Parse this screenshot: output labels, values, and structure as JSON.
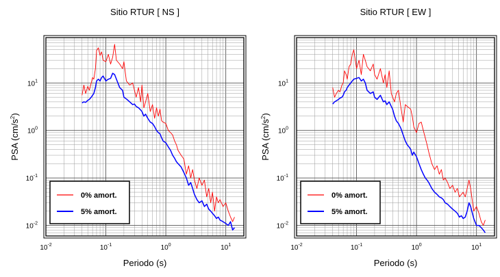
{
  "chart_data": [
    {
      "type": "line",
      "title": "Sitio RTUR [ NS ]",
      "xlabel": "Periodo (s)",
      "ylabel": "PSA (cm/s",
      "ylabel_sup": "2",
      "ylabel_close": ")",
      "x_scale": "log",
      "y_scale": "log",
      "xlim": [
        0.01,
        20
      ],
      "ylim": [
        0.006,
        90
      ],
      "x_ticks": [
        {
          "value": 0.01,
          "base": "10",
          "exp": "-2"
        },
        {
          "value": 0.1,
          "base": "10",
          "exp": "-1"
        },
        {
          "value": 1,
          "base": "10",
          "exp": "0"
        },
        {
          "value": 10,
          "base": "10",
          "exp": "1"
        }
      ],
      "y_ticks": [
        {
          "value": 0.01,
          "base": "10",
          "exp": "-2"
        },
        {
          "value": 0.1,
          "base": "10",
          "exp": "-1"
        },
        {
          "value": 1,
          "base": "10",
          "exp": "0"
        },
        {
          "value": 10,
          "base": "10",
          "exp": "1"
        }
      ],
      "grid": true,
      "legend_position": "bottom-left",
      "series": [
        {
          "name": "0% amort.",
          "color": "#ff0000",
          "x": [
            0.04,
            0.043,
            0.046,
            0.05,
            0.053,
            0.057,
            0.06,
            0.063,
            0.067,
            0.07,
            0.075,
            0.08,
            0.085,
            0.09,
            0.1,
            0.11,
            0.12,
            0.13,
            0.14,
            0.15,
            0.17,
            0.19,
            0.2,
            0.22,
            0.25,
            0.28,
            0.3,
            0.32,
            0.35,
            0.38,
            0.4,
            0.43,
            0.46,
            0.5,
            0.55,
            0.6,
            0.65,
            0.7,
            0.75,
            0.8,
            0.85,
            0.9,
            1.0,
            1.1,
            1.2,
            1.3,
            1.4,
            1.5,
            1.6,
            1.8,
            2.0,
            2.2,
            2.4,
            2.6,
            2.8,
            3.0,
            3.3,
            3.6,
            4.0,
            4.4,
            4.8,
            5.2,
            5.6,
            6.0,
            6.5,
            7.0,
            7.5,
            8.0,
            9.0,
            10.0,
            11.0,
            12.0,
            13.0,
            14.0
          ],
          "y": [
            5.5,
            9.0,
            6.0,
            8.5,
            7.0,
            10.0,
            13.0,
            12.0,
            20.0,
            48.0,
            55.0,
            38.0,
            45.0,
            30.0,
            28.0,
            40.0,
            25.0,
            35.0,
            65.0,
            30.0,
            25.0,
            20.0,
            28.0,
            11.0,
            9.0,
            10.0,
            7.0,
            5.0,
            8.0,
            4.0,
            9.0,
            3.0,
            4.0,
            6.0,
            2.5,
            3.5,
            1.8,
            3.0,
            2.0,
            2.8,
            1.6,
            1.5,
            1.4,
            1.0,
            0.9,
            0.8,
            0.6,
            0.5,
            0.38,
            0.3,
            0.25,
            0.12,
            0.18,
            0.1,
            0.15,
            0.09,
            0.06,
            0.1,
            0.07,
            0.09,
            0.04,
            0.06,
            0.03,
            0.05,
            0.02,
            0.04,
            0.03,
            0.035,
            0.025,
            0.03,
            0.02,
            0.015,
            0.012,
            0.015
          ]
        },
        {
          "name": "5% amort.",
          "color": "#0000ff",
          "x": [
            0.04,
            0.043,
            0.046,
            0.05,
            0.053,
            0.057,
            0.06,
            0.063,
            0.067,
            0.07,
            0.075,
            0.08,
            0.085,
            0.09,
            0.1,
            0.11,
            0.12,
            0.13,
            0.14,
            0.15,
            0.17,
            0.19,
            0.2,
            0.22,
            0.25,
            0.28,
            0.3,
            0.32,
            0.35,
            0.38,
            0.4,
            0.43,
            0.46,
            0.5,
            0.55,
            0.6,
            0.65,
            0.7,
            0.75,
            0.8,
            0.85,
            0.9,
            1.0,
            1.1,
            1.2,
            1.3,
            1.4,
            1.5,
            1.6,
            1.8,
            2.0,
            2.2,
            2.4,
            2.6,
            2.8,
            3.0,
            3.3,
            3.6,
            4.0,
            4.4,
            4.8,
            5.2,
            5.6,
            6.0,
            6.5,
            7.0,
            7.5,
            8.0,
            9.0,
            10.0,
            11.0,
            12.0,
            13.0,
            14.0
          ],
          "y": [
            3.8,
            4.0,
            3.9,
            4.3,
            4.5,
            5.0,
            5.5,
            6.0,
            8.0,
            11.0,
            12.0,
            11.0,
            13.0,
            14.0,
            11.0,
            12.0,
            12.5,
            16.0,
            15.0,
            12.0,
            8.0,
            7.0,
            5.0,
            4.6,
            4.0,
            3.5,
            3.6,
            3.2,
            3.0,
            2.7,
            2.5,
            2.0,
            2.2,
            1.8,
            1.5,
            1.4,
            1.2,
            1.0,
            0.9,
            0.85,
            0.7,
            0.6,
            0.55,
            0.45,
            0.38,
            0.3,
            0.26,
            0.22,
            0.2,
            0.17,
            0.13,
            0.1,
            0.07,
            0.08,
            0.06,
            0.045,
            0.035,
            0.03,
            0.033,
            0.025,
            0.028,
            0.022,
            0.02,
            0.018,
            0.016,
            0.014,
            0.015,
            0.013,
            0.012,
            0.011,
            0.01,
            0.012,
            0.008,
            0.009
          ]
        }
      ]
    },
    {
      "type": "line",
      "title": "Sitio RTUR [ EW ]",
      "xlabel": "Periodo (s)",
      "ylabel": "PSA (cm/s",
      "ylabel_sup": "2",
      "ylabel_close": ")",
      "x_scale": "log",
      "y_scale": "log",
      "xlim": [
        0.01,
        20
      ],
      "ylim": [
        0.006,
        90
      ],
      "x_ticks": [
        {
          "value": 0.01,
          "base": "10",
          "exp": "-2"
        },
        {
          "value": 0.1,
          "base": "10",
          "exp": "-1"
        },
        {
          "value": 1,
          "base": "10",
          "exp": "0"
        },
        {
          "value": 10,
          "base": "10",
          "exp": "1"
        }
      ],
      "y_ticks": [
        {
          "value": 0.01,
          "base": "10",
          "exp": "-2"
        },
        {
          "value": 0.1,
          "base": "10",
          "exp": "-1"
        },
        {
          "value": 1,
          "base": "10",
          "exp": "0"
        },
        {
          "value": 10,
          "base": "10",
          "exp": "1"
        }
      ],
      "grid": true,
      "legend_position": "bottom-left",
      "series": [
        {
          "name": "0% amort.",
          "color": "#ff0000",
          "x": [
            0.04,
            0.043,
            0.046,
            0.05,
            0.053,
            0.057,
            0.06,
            0.063,
            0.067,
            0.07,
            0.075,
            0.08,
            0.085,
            0.09,
            0.1,
            0.11,
            0.12,
            0.13,
            0.14,
            0.15,
            0.17,
            0.19,
            0.2,
            0.22,
            0.25,
            0.28,
            0.3,
            0.32,
            0.35,
            0.38,
            0.4,
            0.43,
            0.46,
            0.5,
            0.55,
            0.6,
            0.65,
            0.7,
            0.75,
            0.8,
            0.85,
            0.9,
            1.0,
            1.1,
            1.2,
            1.3,
            1.4,
            1.5,
            1.6,
            1.8,
            2.0,
            2.2,
            2.4,
            2.6,
            2.8,
            3.0,
            3.3,
            3.6,
            4.0,
            4.4,
            4.8,
            5.2,
            5.6,
            6.0,
            6.5,
            7.0,
            7.5,
            8.0,
            9.0,
            10.0,
            11.0,
            12.0,
            13.0,
            14.0
          ],
          "y": [
            8.0,
            5.0,
            6.0,
            7.0,
            6.5,
            9.0,
            10.0,
            18.0,
            15.0,
            12.0,
            22.0,
            25.0,
            40.0,
            50.0,
            20.0,
            30.0,
            15.0,
            40.0,
            30.0,
            22.0,
            18.0,
            25.0,
            15.0,
            12.0,
            20.0,
            10.0,
            15.0,
            8.0,
            18.0,
            6.0,
            5.0,
            4.0,
            6.0,
            7.0,
            3.0,
            1.5,
            3.5,
            3.2,
            3.0,
            2.8,
            2.0,
            1.2,
            0.9,
            1.4,
            1.5,
            1.0,
            0.7,
            0.5,
            0.35,
            0.2,
            0.15,
            0.18,
            0.12,
            0.15,
            0.09,
            0.1,
            0.08,
            0.06,
            0.07,
            0.05,
            0.06,
            0.04,
            0.045,
            0.05,
            0.04,
            0.06,
            0.09,
            0.06,
            0.02,
            0.025,
            0.018,
            0.012,
            0.01,
            0.013
          ]
        },
        {
          "name": "5% amort.",
          "color": "#0000ff",
          "x": [
            0.04,
            0.043,
            0.046,
            0.05,
            0.053,
            0.057,
            0.06,
            0.063,
            0.067,
            0.07,
            0.075,
            0.08,
            0.085,
            0.09,
            0.1,
            0.11,
            0.12,
            0.13,
            0.14,
            0.15,
            0.17,
            0.19,
            0.2,
            0.22,
            0.25,
            0.28,
            0.3,
            0.32,
            0.35,
            0.38,
            0.4,
            0.43,
            0.46,
            0.5,
            0.55,
            0.6,
            0.65,
            0.7,
            0.75,
            0.8,
            0.85,
            0.9,
            1.0,
            1.1,
            1.2,
            1.3,
            1.4,
            1.5,
            1.6,
            1.8,
            2.0,
            2.2,
            2.4,
            2.6,
            2.8,
            3.0,
            3.3,
            3.6,
            4.0,
            4.4,
            4.8,
            5.2,
            5.6,
            6.0,
            6.5,
            7.0,
            7.5,
            8.0,
            9.0,
            10.0,
            11.0,
            12.0,
            13.0,
            14.0
          ],
          "y": [
            3.6,
            4.0,
            4.2,
            4.5,
            4.8,
            5.0,
            5.5,
            6.5,
            7.0,
            8.0,
            9.0,
            10.0,
            11.0,
            12.0,
            12.5,
            13.0,
            11.0,
            12.0,
            10.0,
            7.0,
            6.0,
            6.5,
            5.0,
            4.5,
            5.5,
            4.0,
            4.2,
            3.5,
            4.0,
            3.2,
            2.8,
            2.0,
            1.6,
            1.4,
            1.1,
            0.8,
            0.6,
            0.5,
            0.45,
            0.4,
            0.3,
            0.35,
            0.28,
            0.2,
            0.15,
            0.12,
            0.1,
            0.09,
            0.08,
            0.06,
            0.05,
            0.045,
            0.04,
            0.038,
            0.035,
            0.03,
            0.028,
            0.025,
            0.022,
            0.02,
            0.018,
            0.015,
            0.016,
            0.014,
            0.015,
            0.02,
            0.03,
            0.025,
            0.014,
            0.01,
            0.01,
            0.009,
            0.008,
            0.007
          ]
        }
      ]
    }
  ]
}
